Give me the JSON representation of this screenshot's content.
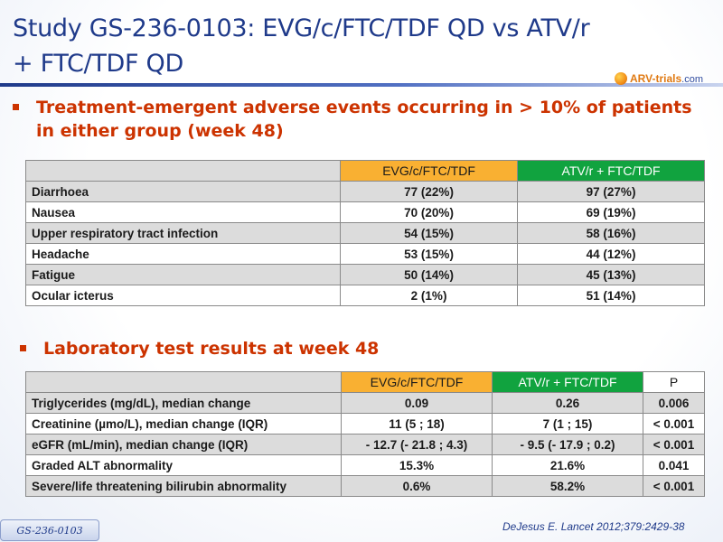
{
  "slide": {
    "title_line1": "Study GS-236-0103: EVG/c/FTC/TDF QD vs ATV/r",
    "title_line2": "+ FTC/TDF QD",
    "logo": {
      "brand": "ARV-trials",
      "suffix": ".com",
      "icon": "orange-globe-icon"
    },
    "colors": {
      "title": "#1f3a8a",
      "bullet": "#cc3300",
      "header_orange": "#f9b032",
      "header_green": "#11a33f"
    }
  },
  "bullet1": {
    "line1": "Treatment-emergent adverse events occurring in > 10% of patients",
    "line2": "in either group (week 48)"
  },
  "ae_table": {
    "headers": [
      "",
      "EVG/c/FTC/TDF",
      "ATV/r + FTC/TDF"
    ],
    "rows": [
      [
        "Diarrhoea",
        "77 (22%)",
        "97 (27%)"
      ],
      [
        "Nausea",
        "70 (20%)",
        "69 (19%)"
      ],
      [
        "Upper respiratory tract infection",
        "54 (15%)",
        "58 (16%)"
      ],
      [
        "Headache",
        "53 (15%)",
        "44 (12%)"
      ],
      [
        "Fatigue",
        "50 (14%)",
        "45 (13%)"
      ],
      [
        "Ocular icterus",
        "2 (1%)",
        "51 (14%)"
      ]
    ]
  },
  "bullet2": {
    "text": "Laboratory test results at week 48"
  },
  "lab_table": {
    "headers": [
      "",
      "EVG/c/FTC/TDF",
      "ATV/r + FTC/TDF",
      "P"
    ],
    "rows": [
      [
        "Triglycerides (mg/dL), median change",
        "0.09",
        "0.26",
        "0.006"
      ],
      [
        "Creatinine (µmo/L), median change (IQR)",
        "11 (5 ; 18)",
        "7 (1 ; 15)",
        "< 0.001"
      ],
      [
        "eGFR (mL/min), median change (IQR)",
        "- 12.7 (- 21.8 ; 4.3)",
        "- 9.5 (- 17.9 ; 0.2)",
        "< 0.001"
      ],
      [
        "Graded ALT abnormality",
        "15.3%",
        "21.6%",
        "0.041"
      ],
      [
        "Severe/life threatening bilirubin abnormality",
        "0.6%",
        "58.2%",
        "< 0.001"
      ]
    ]
  },
  "footer": {
    "tag": "GS-236-0103",
    "citation": "DeJesus E. Lancet 2012;379:2429-38"
  }
}
